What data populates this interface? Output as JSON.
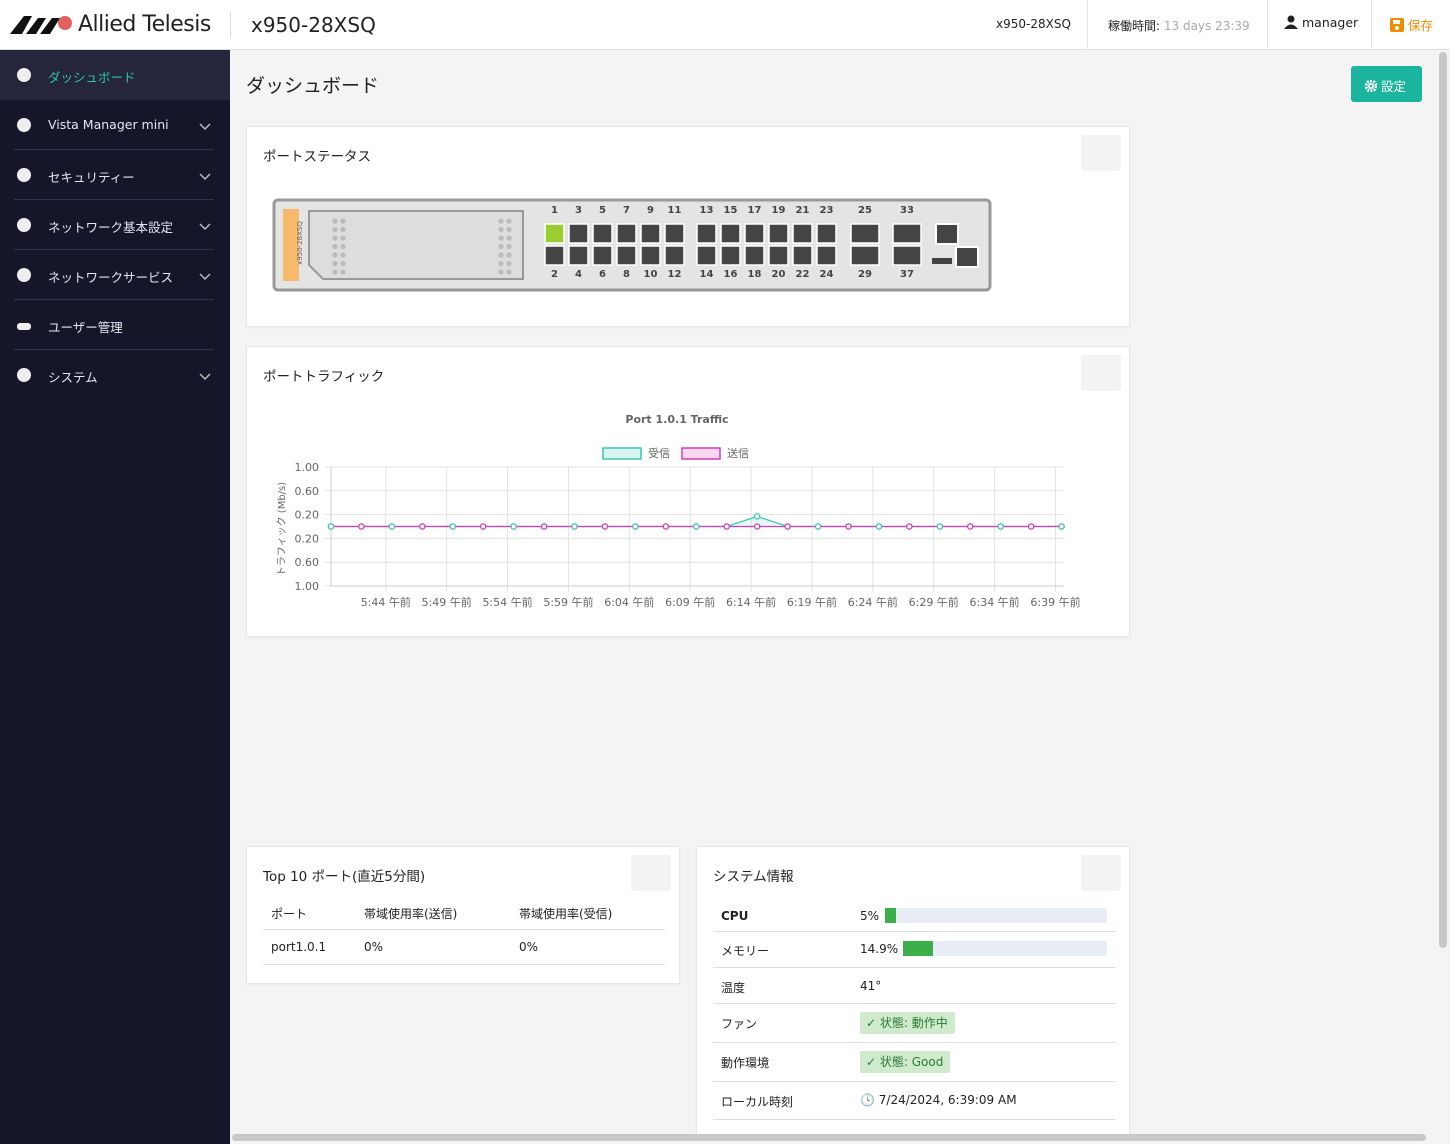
{
  "header": {
    "brand": "Allied Telesis",
    "model": "x950-28XSQ",
    "device": "x950-28XSQ",
    "uptime_label": "稼働時間:",
    "uptime": "13 days 23:39",
    "user": "manager",
    "save": "保存"
  },
  "sidebar": {
    "items": [
      "ダッシュボード",
      "Vista Manager mini",
      "セキュリティー",
      "ネットワーク基本設定",
      "ネットワークサービス",
      "ユーザー管理",
      "システム"
    ]
  },
  "page": {
    "title": "ダッシュボード",
    "settings_button": "設定"
  },
  "port_status": {
    "title": "ポートステータス",
    "chassis_label": "x950-28XSQ",
    "top_row": [
      1,
      3,
      5,
      7,
      9,
      11,
      13,
      15,
      17,
      19,
      21,
      23,
      25,
      33
    ],
    "bottom_row": [
      2,
      4,
      6,
      8,
      10,
      12,
      14,
      16,
      18,
      20,
      22,
      24,
      29,
      37
    ],
    "link_up": [
      1
    ]
  },
  "port_traffic": {
    "title": "ポートトラフィック"
  },
  "chart_data": {
    "type": "line",
    "title": "Port 1.0.1 Traffic",
    "y_label": "トラフィック (Mb/s)",
    "legend": "top",
    "grid": true,
    "x": [
      339.5,
      342,
      344.5,
      347,
      349.5,
      352,
      354.5,
      357,
      359.5,
      362,
      364.5,
      367,
      369.5,
      372,
      374.5,
      377,
      379.5,
      382,
      384.5,
      387,
      389.5,
      392,
      394.5,
      397,
      399.5
    ],
    "xlim": [
      339.5,
      399.7
    ],
    "xticks": [
      {
        "value": 344,
        "label": "5:44 午前"
      },
      {
        "value": 349,
        "label": "5:49 午前"
      },
      {
        "value": 354,
        "label": "5:54 午前"
      },
      {
        "value": 359,
        "label": "5:59 午前"
      },
      {
        "value": 364,
        "label": "6:04 午前"
      },
      {
        "value": 369,
        "label": "6:09 午前"
      },
      {
        "value": 374,
        "label": "6:14 午前"
      },
      {
        "value": 379,
        "label": "6:19 午前"
      },
      {
        "value": 384,
        "label": "6:24 午前"
      },
      {
        "value": 389,
        "label": "6:29 午前"
      },
      {
        "value": 394,
        "label": "6:34 午前"
      },
      {
        "value": 399,
        "label": "6:39 午前"
      }
    ],
    "ylim": [
      -1,
      1
    ],
    "yticks": [
      {
        "value": 1,
        "label": "1.00"
      },
      {
        "value": 0.6,
        "label": "0.60"
      },
      {
        "value": 0.2,
        "label": "0.20"
      },
      {
        "value": -0.2,
        "label": "0.20"
      },
      {
        "value": -0.6,
        "label": "0.60"
      },
      {
        "value": -1,
        "label": "1.00"
      }
    ],
    "series": [
      {
        "name": "受信",
        "color": "#3cc8b4",
        "values": [
          0,
          0,
          0,
          0,
          0,
          0,
          0,
          0,
          0,
          0,
          0,
          0,
          0,
          0,
          0.17,
          0,
          0,
          0,
          0,
          0,
          0,
          0,
          0,
          0,
          0
        ]
      },
      {
        "name": "送信",
        "color": "#d63cb4",
        "values": [
          0,
          0,
          0,
          0,
          0,
          0,
          0,
          0,
          0,
          0,
          0,
          0,
          0,
          0,
          0,
          0,
          0,
          0,
          0,
          0,
          0,
          0,
          0,
          0,
          0
        ]
      }
    ]
  },
  "top10": {
    "title": "Top 10 ポート(直近5分間)",
    "columns": [
      "ポート",
      "帯域使用率(送信)",
      "帯域使用率(受信)"
    ],
    "rows": [
      [
        "port1.0.1",
        "0%",
        "0%"
      ]
    ]
  },
  "system_info": {
    "title": "システム情報",
    "cpu": {
      "label": "CPU",
      "value": 5,
      "value_label": "5%"
    },
    "memory": {
      "label": "メモリー",
      "value": 14.9,
      "value_label": "14.9%"
    },
    "rows": [
      {
        "label": "温度",
        "value": "41°"
      },
      {
        "label": "ファン",
        "value": "状態: 動作中"
      },
      {
        "label": "動作環境",
        "value": "状態: Good"
      },
      {
        "label": "ローカル時刻",
        "value": "7/24/2024, 6:39:09 AM"
      }
    ]
  }
}
